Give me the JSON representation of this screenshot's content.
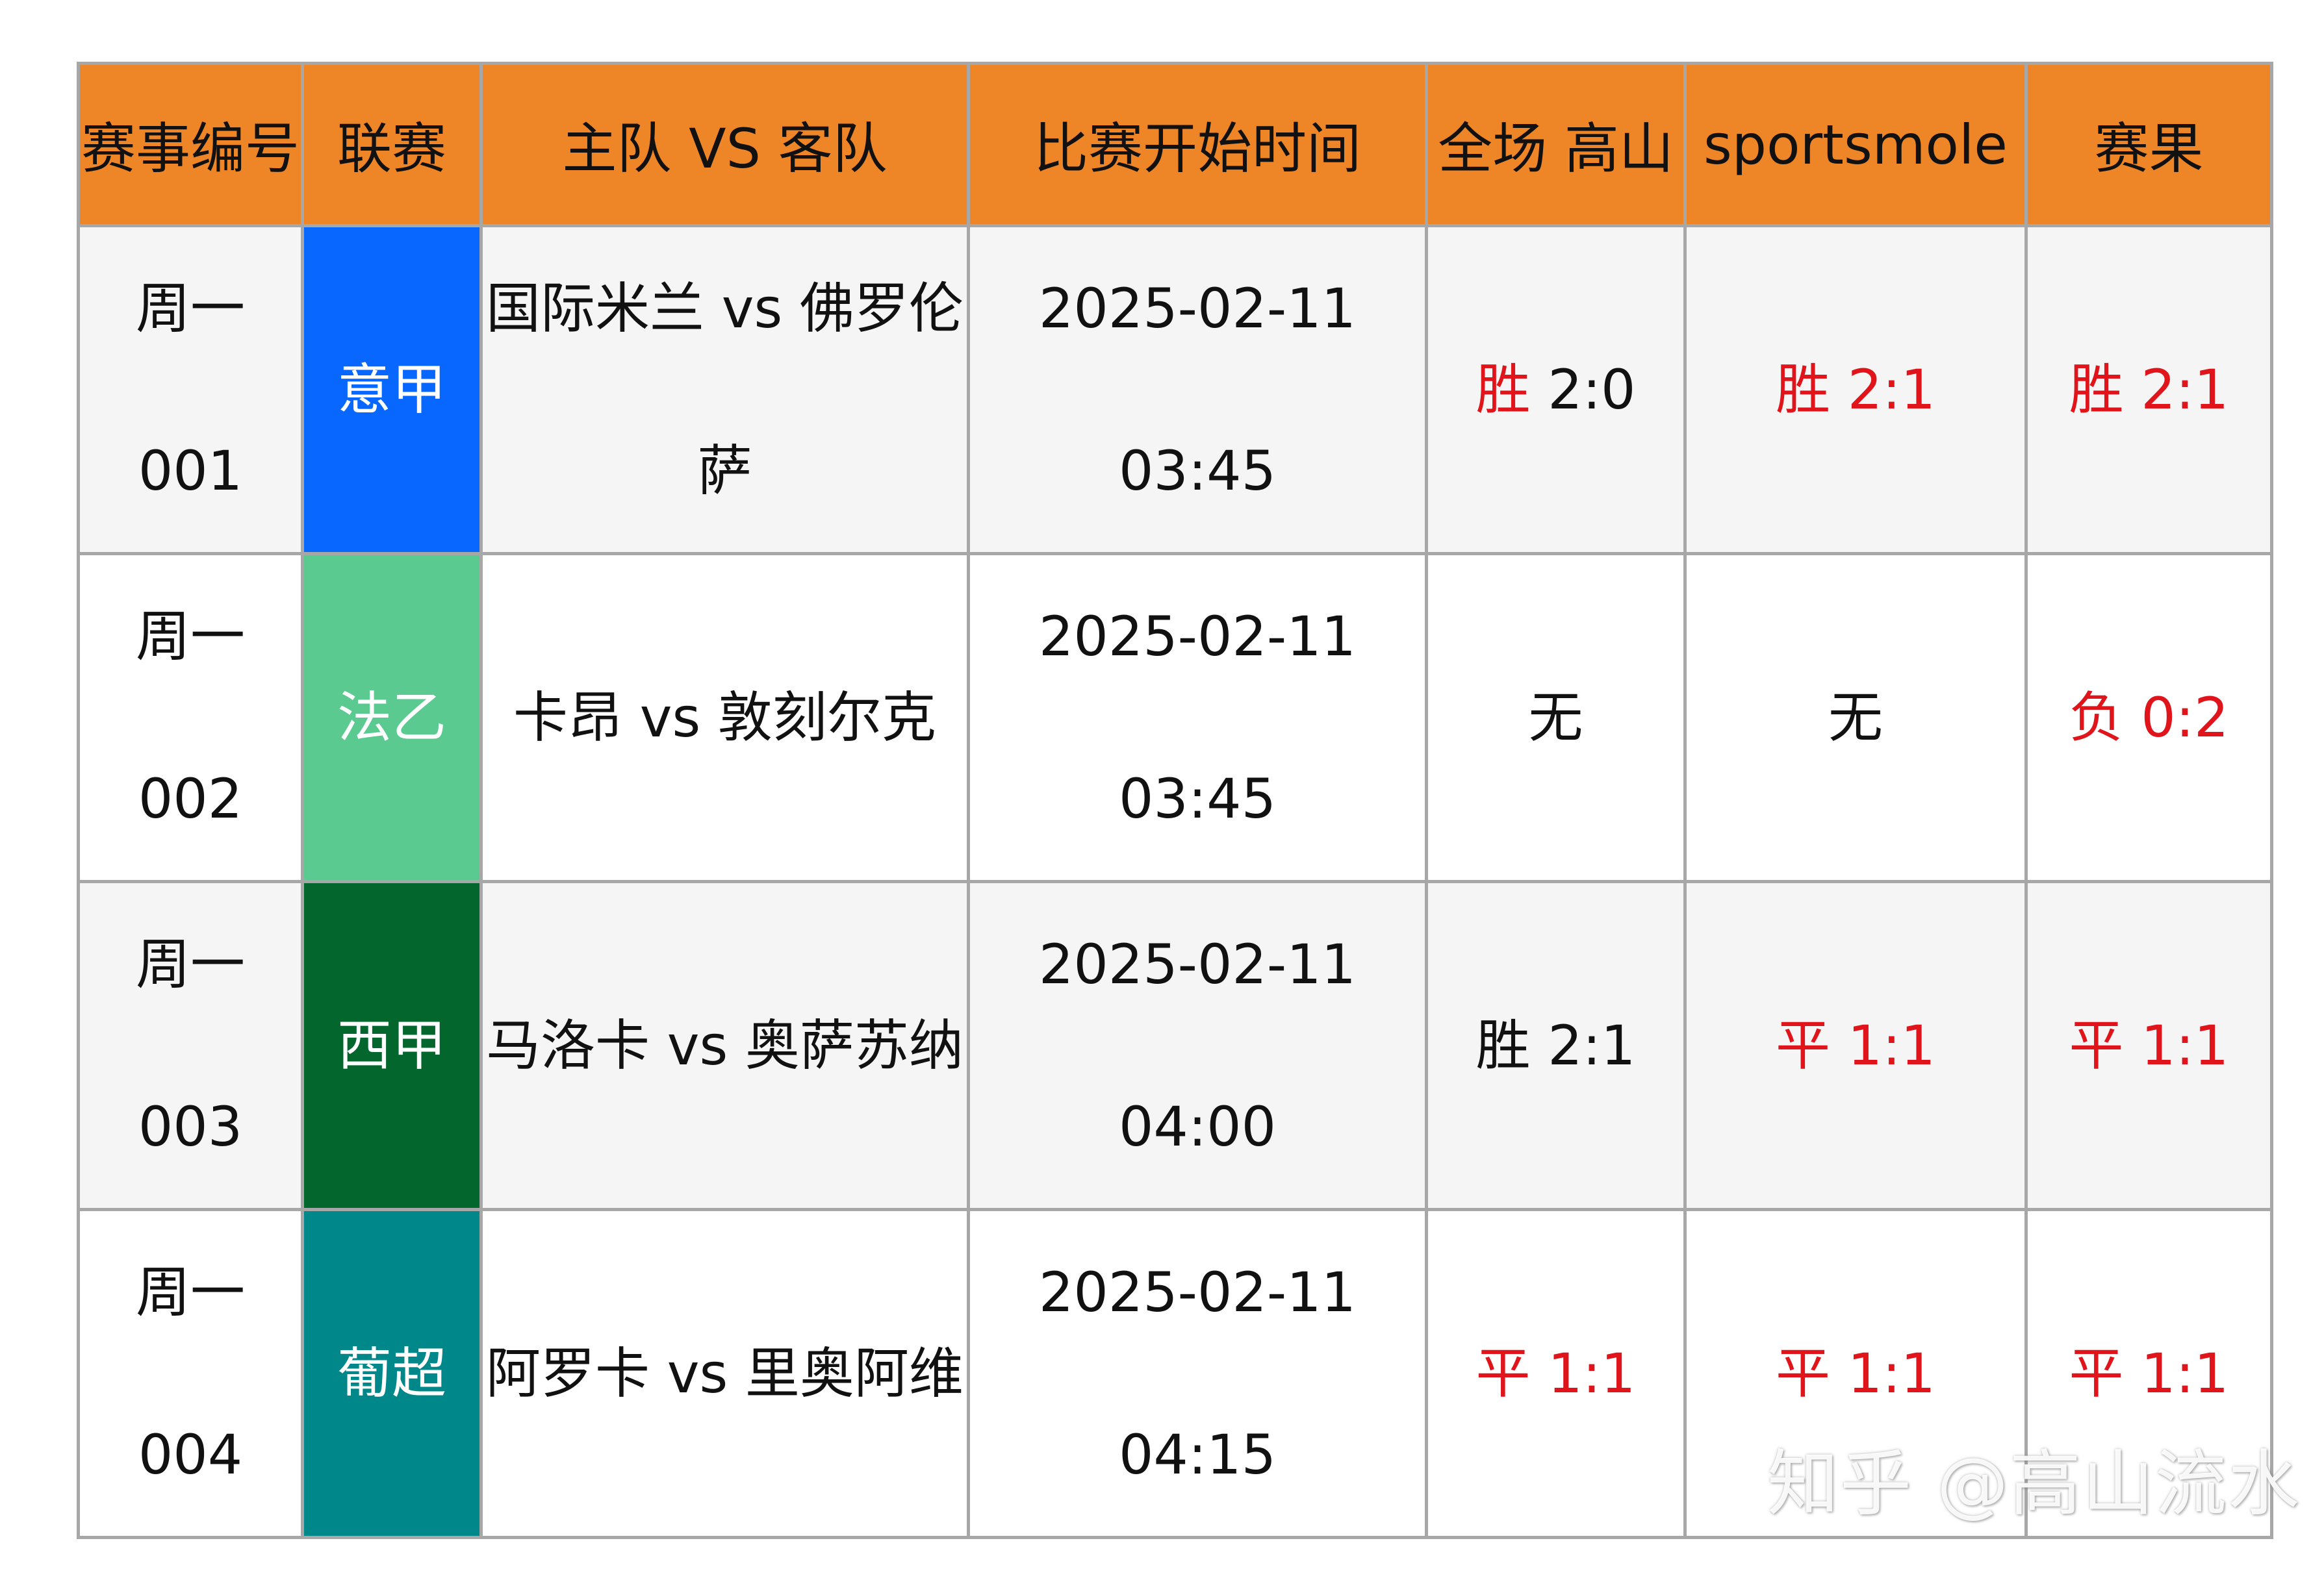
{
  "header": {
    "match_no": "赛事编号",
    "league": "联赛",
    "teams": "主队 VS 客队",
    "start_time": "比赛开始时间",
    "fulltime_gaoshan": "全场 高山",
    "sportsmole": "sportsmole",
    "result": "赛果"
  },
  "rows": [
    {
      "match_no": "周一 001",
      "league": "意甲",
      "league_color": "#0767ff",
      "teams_line1": "国际米兰 vs 佛罗伦",
      "teams_line2": "萨",
      "date": "2025-02-11",
      "time": "03:45",
      "gaoshan_word": "胜",
      "gaoshan_score": " 2:0",
      "sportsmole": "胜 2:1",
      "result": "胜 2:1"
    },
    {
      "match_no": "周一 002",
      "league": "法乙",
      "league_color": "#5bca91",
      "teams": "卡昂 vs 敦刻尔克",
      "date": "2025-02-11",
      "time": "03:45",
      "gaoshan": "无",
      "sportsmole": "无",
      "result": "负 0:2"
    },
    {
      "match_no": "周一 003",
      "league": "西甲",
      "league_color": "#03662d",
      "teams": "马洛卡 vs 奥萨苏纳",
      "date": "2025-02-11",
      "time": "04:00",
      "gaoshan": "胜 2:1",
      "sportsmole": "平 1:1",
      "result": "平 1:1"
    },
    {
      "match_no": "周一 004",
      "league": "葡超",
      "league_color": "#00878a",
      "teams": "阿罗卡 vs 里奥阿维",
      "date": "2025-02-11",
      "time": "04:15",
      "gaoshan": "平 1:1",
      "sportsmole": "平 1:1",
      "result": "平 1:1"
    }
  ],
  "colors": {
    "header_bg": "#ee8526",
    "highlight_red": "#e0141b",
    "border": "#a7a7a7"
  },
  "watermark": "知乎 @高山流水"
}
